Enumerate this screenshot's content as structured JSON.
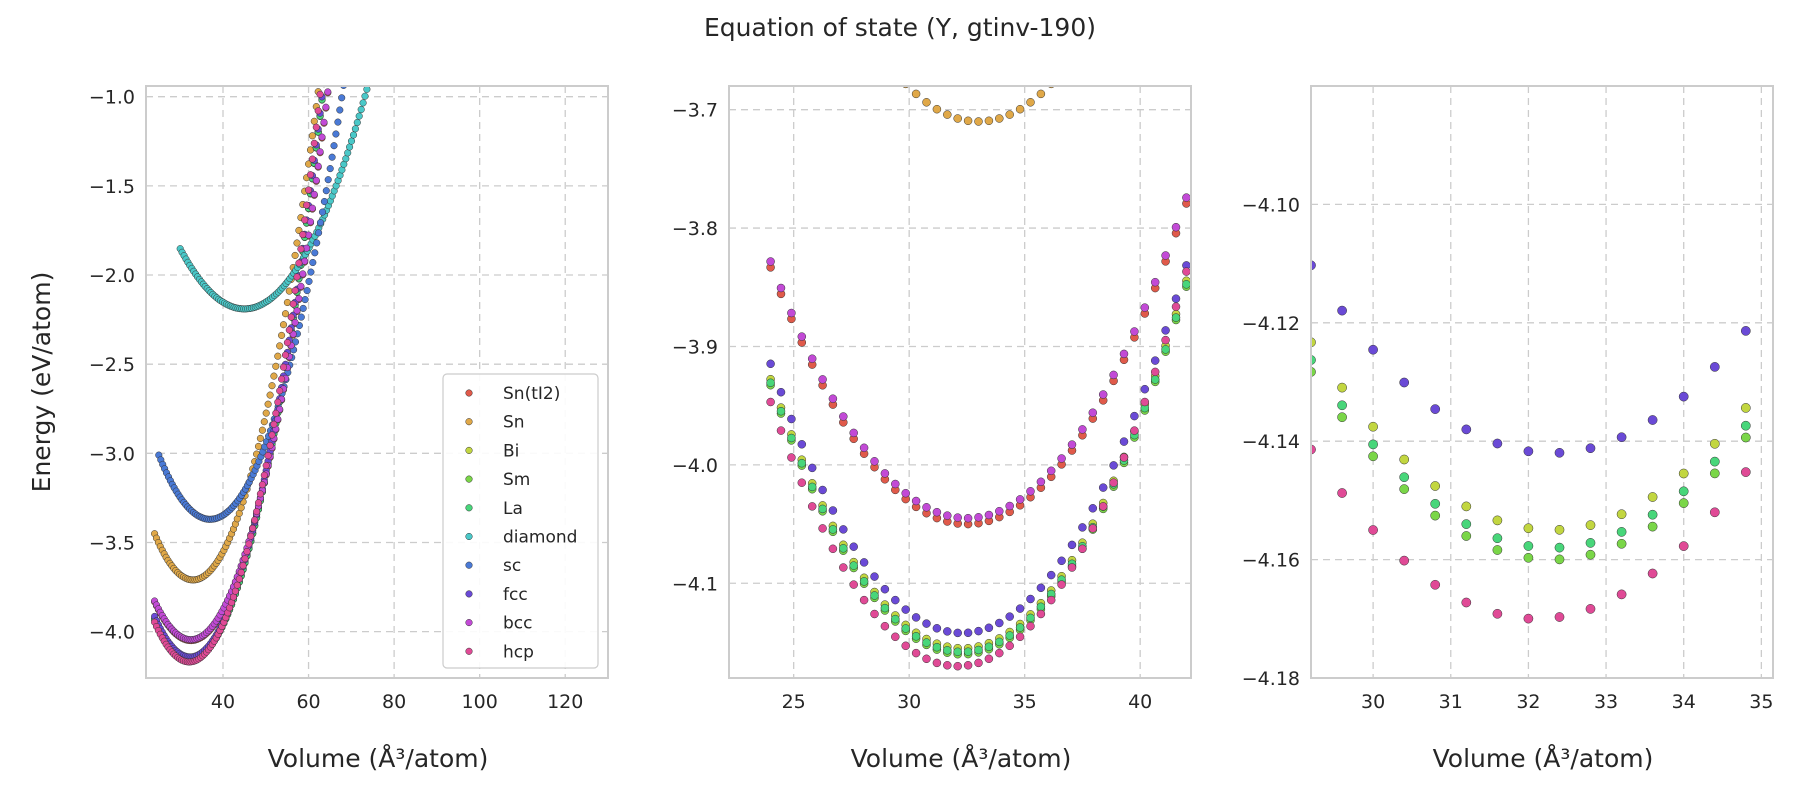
{
  "figure": {
    "title": "Equation of state (Y, gtinv-190)"
  },
  "chart_data": [
    {
      "type": "scatter",
      "xlabel": "Volume (Å³/atom)",
      "ylabel": "Energy (eV/atom)",
      "xlim": [
        22,
        130
      ],
      "ylim": [
        -4.26,
        -0.94
      ],
      "xticks": [
        40,
        60,
        80,
        100,
        120
      ],
      "yticks": [
        -4.0,
        -3.5,
        -3.0,
        -2.5,
        -2.0,
        -1.5,
        -1.0
      ],
      "grid": true,
      "legend": "lower-right",
      "series": [
        {
          "name": "Sn(tI2)",
          "color": "#e05a4a",
          "v0": 32.5,
          "e0": -4.05,
          "b": 0.003,
          "xmin": 24,
          "xmax": 98
        },
        {
          "name": "Sn",
          "color": "#e0a848",
          "v0": 33.0,
          "e0": -3.71,
          "b": 0.0032,
          "xmin": 24,
          "xmax": 100
        },
        {
          "name": "Bi",
          "color": "#c2d640",
          "v0": 32.3,
          "e0": -4.155,
          "b": 0.0033,
          "xmin": 24,
          "xmax": 97
        },
        {
          "name": "Sm",
          "color": "#7ad648",
          "v0": 32.3,
          "e0": -4.16,
          "b": 0.0033,
          "xmin": 24,
          "xmax": 97
        },
        {
          "name": "La",
          "color": "#48d67a",
          "v0": 32.3,
          "e0": -4.158,
          "b": 0.0033,
          "xmin": 24,
          "xmax": 97
        },
        {
          "name": "diamond",
          "color": "#4ac8c8",
          "v0": 45.0,
          "e0": -2.19,
          "b": 0.0015,
          "xmin": 30,
          "xmax": 130
        },
        {
          "name": "sc",
          "color": "#4a7ad6",
          "v0": 37.0,
          "e0": -3.37,
          "b": 0.0025,
          "xmin": 25,
          "xmax": 106
        },
        {
          "name": "fcc",
          "color": "#6a4ad6",
          "v0": 32.3,
          "e0": -4.142,
          "b": 0.0033,
          "xmin": 24,
          "xmax": 97
        },
        {
          "name": "bcc",
          "color": "#c24ad6",
          "v0": 32.5,
          "e0": -4.045,
          "b": 0.003,
          "xmin": 24,
          "xmax": 98
        },
        {
          "name": "hcp",
          "color": "#e04a96",
          "v0": 32.1,
          "e0": -4.17,
          "b": 0.0034,
          "xmin": 24,
          "xmax": 97
        }
      ]
    },
    {
      "type": "scatter",
      "xlabel": "Volume (Å³/atom)",
      "ylabel": "",
      "xlim": [
        22.2,
        42.2
      ],
      "ylim": [
        -4.18,
        -3.68
      ],
      "xticks": [
        25,
        30,
        35,
        40
      ],
      "yticks": [
        -4.1,
        -4.0,
        -3.9,
        -3.8,
        -3.7
      ],
      "grid": true
    },
    {
      "type": "scatter",
      "xlabel": "Volume (Å³/atom)",
      "ylabel": "",
      "xlim": [
        29.2,
        35.15
      ],
      "ylim": [
        -4.18,
        -4.08
      ],
      "xticks": [
        30,
        31,
        32,
        33,
        34,
        35
      ],
      "yticks": [
        -4.18,
        -4.16,
        -4.14,
        -4.12,
        -4.1
      ],
      "grid": true
    }
  ]
}
